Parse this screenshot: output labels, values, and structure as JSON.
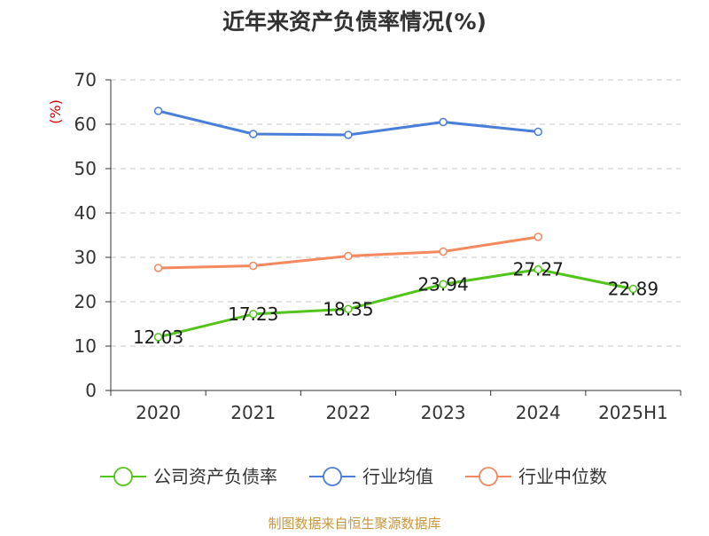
{
  "chart_data": {
    "type": "line",
    "title": "近年来资产负债率情况(%)",
    "ylabel": "(%)",
    "categories": [
      "2020",
      "2021",
      "2022",
      "2023",
      "2024",
      "2025H1"
    ],
    "ylim": [
      0,
      70
    ],
    "yticks": [
      0,
      10,
      20,
      30,
      40,
      50,
      60,
      70
    ],
    "grid": true,
    "legend_position": "bottom",
    "series": [
      {
        "name": "公司资产负债率",
        "color": "#52c41a",
        "values": [
          12.03,
          17.23,
          18.35,
          23.94,
          27.27,
          22.89
        ],
        "data_labels": [
          "12.03",
          "17.23",
          "18.35",
          "23.94",
          "27.27",
          "22.89"
        ],
        "show_labels": true
      },
      {
        "name": "行业均值",
        "color": "#4a7fd9",
        "values": [
          63.0,
          57.8,
          57.6,
          60.5,
          58.3,
          null
        ],
        "show_labels": false
      },
      {
        "name": "行业中位数",
        "color": "#f4895f",
        "values": [
          27.6,
          28.1,
          30.3,
          31.3,
          34.6,
          null
        ],
        "show_labels": false
      }
    ]
  },
  "source": "制图数据来自恒生聚源数据库"
}
